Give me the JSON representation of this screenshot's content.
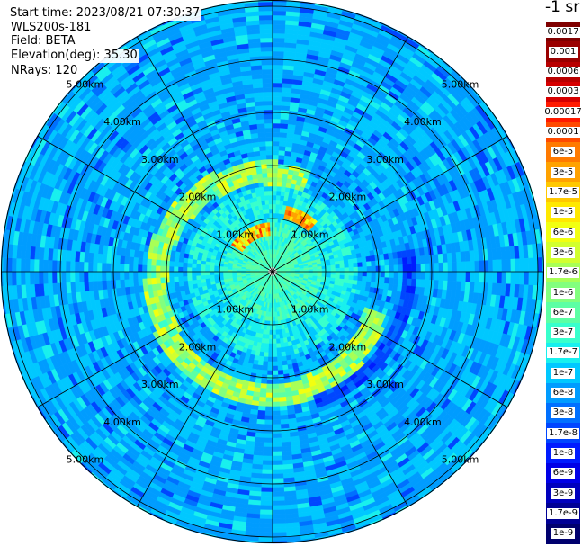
{
  "info": {
    "start_time": "Start time: 2023/08/21 07:30:37",
    "instrument": "WLS200s-181",
    "field": "Field: BETA",
    "elevation": "Elevation(deg): 35.30",
    "nrays": "NRays: 120"
  },
  "colorbar": {
    "title": "-1 sr",
    "labels": [
      "0.0017",
      "0.001",
      "0.0006",
      "0.0003",
      "0.00017",
      "0.0001",
      "6e-5",
      "3e-5",
      "1.7e-5",
      "1e-5",
      "6e-6",
      "3e-6",
      "1.7e-6",
      "1e-6",
      "6e-7",
      "3e-7",
      "1.7e-7",
      "1e-7",
      "6e-8",
      "3e-8",
      "1.7e-8",
      "1e-8",
      "6e-9",
      "3e-9",
      "1.7e-9",
      "1e-9"
    ],
    "colors": [
      "#7f0000",
      "#9a0000",
      "#b80000",
      "#d60000",
      "#ff1a00",
      "#ff4a00",
      "#ff7a00",
      "#ffa200",
      "#ffc800",
      "#ffe800",
      "#f2ff10",
      "#d2ff2e",
      "#a8ff56",
      "#82ff7e",
      "#5cffa4",
      "#38ffcc",
      "#18f0ee",
      "#00c8ff",
      "#009cff",
      "#0070ff",
      "#0046ff",
      "#001cff",
      "#0000e6",
      "#0000bd",
      "#000095",
      "#00006e"
    ]
  },
  "range_rings": {
    "labels": [
      "1.00km",
      "2.00km",
      "3.00km",
      "4.00km",
      "5.00km"
    ]
  }
}
